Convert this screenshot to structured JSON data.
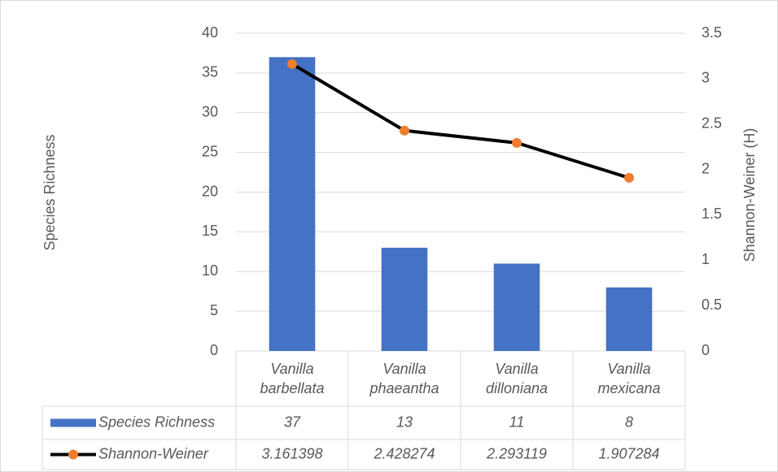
{
  "chart_data": {
    "type": "bar",
    "categories": [
      "Vanilla barbellata",
      "Vanilla phaeantha",
      "Vanilla dilloniana",
      "Vanilla mexicana"
    ],
    "series": [
      {
        "name": "Species Richness",
        "type": "bar",
        "color": "#4472c4",
        "values": [
          37,
          13,
          11,
          8
        ]
      },
      {
        "name": "Shannon-Weiner",
        "type": "line",
        "axis": "y2",
        "color": "#000000",
        "marker_color": "#ed7d31",
        "values": [
          3.161398,
          2.428274,
          2.293119,
          1.907284
        ]
      }
    ],
    "y_label": "Species Richness",
    "y2_label": "Shannon-Weiner (H)",
    "ylim": [
      0,
      40
    ],
    "yticks": [
      0,
      5,
      10,
      15,
      20,
      25,
      30,
      35,
      40
    ],
    "y2lim": [
      0,
      3.5
    ],
    "y2ticks": [
      0,
      0.5,
      1,
      1.5,
      2,
      2.5,
      3,
      3.5
    ],
    "grid": true
  }
}
